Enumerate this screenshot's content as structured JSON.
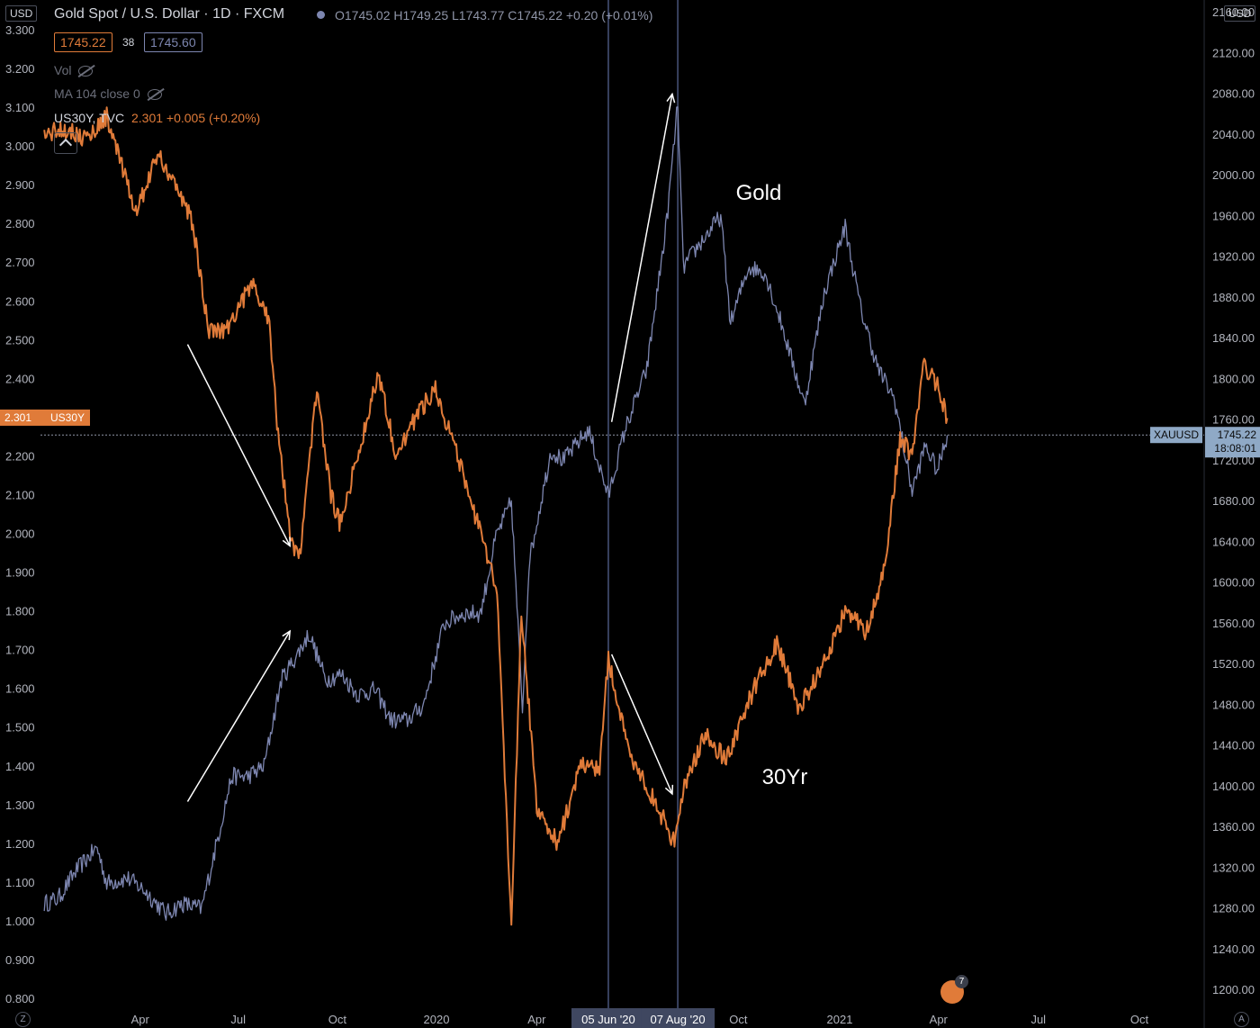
{
  "header": {
    "title": "Gold Spot / U.S. Dollar · 1D · FXCM",
    "ohlc": "O1745.02 H1749.25 L1743.77 C1745.22 +0.20 (+0.01%)",
    "bid": "1745.22",
    "spread": "38",
    "ask": "1745.60",
    "vol_label": "Vol",
    "ma_label": "MA 104 close 0",
    "compare_label": "US30Y, TVC",
    "compare_value": "2.301 +0.005 (+0.20%)"
  },
  "currency": {
    "left": "USD",
    "right": "USD"
  },
  "colors": {
    "gold": "#7d86b0",
    "yield": "#e07b39",
    "bg": "#000000",
    "grid_text": "#b2b5be"
  },
  "annotations": {
    "gold_label": "Gold",
    "yield_label": "30Yr"
  },
  "markers": {
    "left_price": "2.301",
    "left_symbol": "US30Y",
    "right_symbol": "XAUUSD",
    "right_price": "1745.22",
    "countdown": "18:08:01"
  },
  "selected_dates": [
    "05 Jun '20",
    "07 Aug '20"
  ],
  "chart_data": {
    "type": "line",
    "title": "Gold Spot / U.S. Dollar · 1D · FXCM",
    "x_ticks": [
      "Apr",
      "Jul",
      "Oct",
      "2020",
      "Apr",
      "05 Jun '20",
      "07 Aug '20",
      "Oct",
      "2021",
      "Apr",
      "Jul",
      "Oct"
    ],
    "left_axis": {
      "ticks": [
        "3.300",
        "3.200",
        "3.100",
        "3.000",
        "2.900",
        "2.800",
        "2.700",
        "2.600",
        "2.500",
        "2.400",
        "2.300",
        "2.200",
        "2.100",
        "2.000",
        "1.900",
        "1.800",
        "1.700",
        "1.600",
        "1.500",
        "1.400",
        "1.300",
        "1.200",
        "1.100",
        "1.000",
        "0.900",
        "0.800"
      ],
      "ylim": [
        0.8,
        3.3
      ]
    },
    "right_axis": {
      "ticks": [
        "2160.00",
        "2120.00",
        "2080.00",
        "2040.00",
        "2000.00",
        "1960.00",
        "1920.00",
        "1880.00",
        "1840.00",
        "1800.00",
        "1760.00",
        "1720.00",
        "1680.00",
        "1640.00",
        "1600.00",
        "1560.00",
        "1520.00",
        "1480.00",
        "1440.00",
        "1400.00",
        "1360.00",
        "1320.00",
        "1280.00",
        "1240.00",
        "1200.00"
      ],
      "ylim": [
        1180,
        2190
      ]
    },
    "series": [
      {
        "name": "XAUUSD",
        "axis": "right",
        "points": [
          [
            "2019-01-02",
            1285
          ],
          [
            "2019-01-15",
            1290
          ],
          [
            "2019-02-01",
            1318
          ],
          [
            "2019-02-20",
            1340
          ],
          [
            "2019-03-01",
            1305
          ],
          [
            "2019-03-20",
            1310
          ],
          [
            "2019-04-05",
            1298
          ],
          [
            "2019-04-25",
            1275
          ],
          [
            "2019-05-10",
            1285
          ],
          [
            "2019-05-28",
            1280
          ],
          [
            "2019-06-10",
            1340
          ],
          [
            "2019-06-25",
            1410
          ],
          [
            "2019-07-10",
            1410
          ],
          [
            "2019-07-25",
            1420
          ],
          [
            "2019-08-10",
            1505
          ],
          [
            "2019-08-25",
            1530
          ],
          [
            "2019-09-05",
            1550
          ],
          [
            "2019-09-20",
            1505
          ],
          [
            "2019-10-05",
            1510
          ],
          [
            "2019-10-20",
            1490
          ],
          [
            "2019-11-05",
            1495
          ],
          [
            "2019-11-20",
            1465
          ],
          [
            "2019-12-05",
            1465
          ],
          [
            "2019-12-20",
            1480
          ],
          [
            "2020-01-08",
            1560
          ],
          [
            "2020-01-25",
            1570
          ],
          [
            "2020-02-10",
            1570
          ],
          [
            "2020-02-24",
            1645
          ],
          [
            "2020-03-09",
            1680
          ],
          [
            "2020-03-19",
            1475
          ],
          [
            "2020-03-25",
            1620
          ],
          [
            "2020-04-14",
            1730
          ],
          [
            "2020-04-25",
            1720
          ],
          [
            "2020-05-18",
            1750
          ],
          [
            "2020-06-05",
            1685
          ],
          [
            "2020-06-20",
            1750
          ],
          [
            "2020-07-10",
            1810
          ],
          [
            "2020-07-28",
            1955
          ],
          [
            "2020-08-07",
            2070
          ],
          [
            "2020-08-12",
            1910
          ],
          [
            "2020-08-25",
            1930
          ],
          [
            "2020-09-15",
            1960
          ],
          [
            "2020-09-24",
            1855
          ],
          [
            "2020-10-10",
            1910
          ],
          [
            "2020-10-25",
            1905
          ],
          [
            "2020-11-09",
            1855
          ],
          [
            "2020-11-30",
            1775
          ],
          [
            "2020-12-18",
            1885
          ],
          [
            "2021-01-06",
            1950
          ],
          [
            "2021-01-20",
            1870
          ],
          [
            "2021-02-05",
            1810
          ],
          [
            "2021-02-20",
            1780
          ],
          [
            "2021-03-08",
            1690
          ],
          [
            "2021-03-20",
            1735
          ],
          [
            "2021-03-31",
            1710
          ],
          [
            "2021-04-09",
            1745
          ]
        ]
      },
      {
        "name": "US30Y",
        "axis": "left",
        "points": [
          [
            "2019-01-02",
            3.03
          ],
          [
            "2019-01-20",
            3.05
          ],
          [
            "2019-02-10",
            3.02
          ],
          [
            "2019-03-01",
            3.08
          ],
          [
            "2019-03-20",
            2.9
          ],
          [
            "2019-03-28",
            2.83
          ],
          [
            "2019-04-17",
            2.98
          ],
          [
            "2019-05-01",
            2.92
          ],
          [
            "2019-05-20",
            2.8
          ],
          [
            "2019-06-03",
            2.53
          ],
          [
            "2019-06-20",
            2.53
          ],
          [
            "2019-07-08",
            2.62
          ],
          [
            "2019-07-15",
            2.64
          ],
          [
            "2019-07-30",
            2.55
          ],
          [
            "2019-08-07",
            2.25
          ],
          [
            "2019-08-20",
            1.97
          ],
          [
            "2019-08-28",
            1.96
          ],
          [
            "2019-09-12",
            2.38
          ],
          [
            "2019-09-25",
            2.1
          ],
          [
            "2019-10-03",
            2.03
          ],
          [
            "2019-10-20",
            2.2
          ],
          [
            "2019-11-08",
            2.42
          ],
          [
            "2019-11-25",
            2.2
          ],
          [
            "2019-12-12",
            2.3
          ],
          [
            "2019-12-31",
            2.38
          ],
          [
            "2020-01-20",
            2.2
          ],
          [
            "2020-02-05",
            2.05
          ],
          [
            "2020-02-25",
            1.85
          ],
          [
            "2020-03-09",
            0.99
          ],
          [
            "2020-03-18",
            1.8
          ],
          [
            "2020-04-01",
            1.3
          ],
          [
            "2020-04-20",
            1.2
          ],
          [
            "2020-05-10",
            1.4
          ],
          [
            "2020-05-28",
            1.4
          ],
          [
            "2020-06-05",
            1.68
          ],
          [
            "2020-06-22",
            1.45
          ],
          [
            "2020-07-15",
            1.32
          ],
          [
            "2020-08-05",
            1.2
          ],
          [
            "2020-08-12",
            1.35
          ],
          [
            "2020-09-01",
            1.48
          ],
          [
            "2020-09-20",
            1.42
          ],
          [
            "2020-10-15",
            1.6
          ],
          [
            "2020-11-05",
            1.72
          ],
          [
            "2020-11-25",
            1.55
          ],
          [
            "2020-12-15",
            1.65
          ],
          [
            "2021-01-06",
            1.8
          ],
          [
            "2021-01-25",
            1.75
          ],
          [
            "2021-02-10",
            1.9
          ],
          [
            "2021-02-25",
            2.25
          ],
          [
            "2021-03-08",
            2.2
          ],
          [
            "2021-03-18",
            2.44
          ],
          [
            "2021-04-01",
            2.38
          ],
          [
            "2021-04-09",
            2.3
          ]
        ]
      }
    ],
    "arrows": [
      {
        "from": [
          "2019-05-15",
          2.49
        ],
        "to": [
          "2019-08-18",
          1.97
        ],
        "axis": "left"
      },
      {
        "from": [
          "2019-05-15",
          1.31
        ],
        "to": [
          "2019-08-18",
          1.75
        ],
        "axis": "left"
      },
      {
        "from": [
          "2020-06-08",
          1758
        ],
        "to": [
          "2020-08-02",
          2080
        ],
        "axis": "right"
      },
      {
        "from": [
          "2020-06-08",
          1.69
        ],
        "to": [
          "2020-08-02",
          1.33
        ],
        "axis": "left"
      }
    ],
    "current_values": {
      "US30Y": 2.301,
      "XAUUSD": 1745.22
    }
  }
}
